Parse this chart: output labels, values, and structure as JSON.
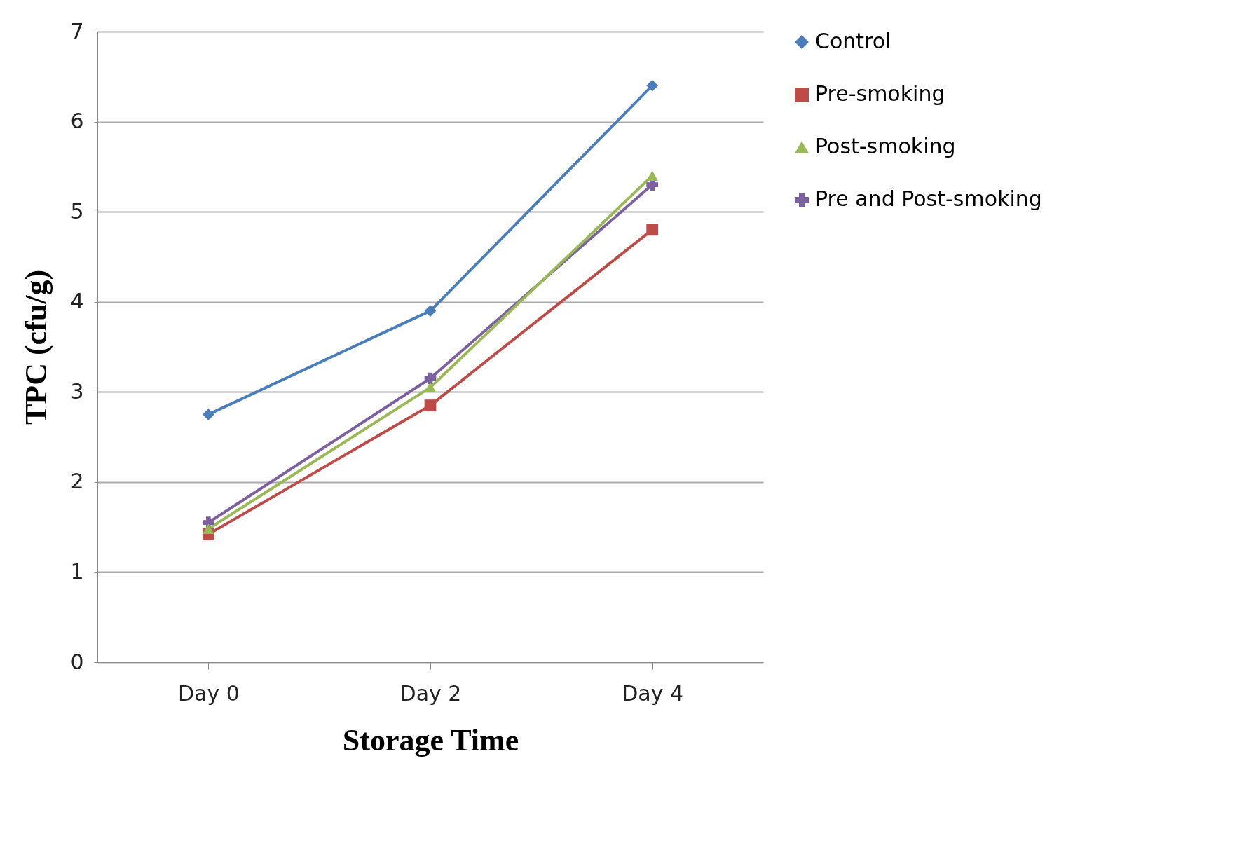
{
  "chart_data": {
    "type": "line",
    "xlabel": "Storage Time",
    "ylabel": "TPC (cfu/g)",
    "categories": [
      "Day 0",
      "Day 2",
      "Day 4"
    ],
    "ylim": [
      0,
      7
    ],
    "yticks": [
      0,
      1,
      2,
      3,
      4,
      5,
      6,
      7
    ],
    "grid": "y",
    "legend": "right",
    "line_style": "solid",
    "series": [
      {
        "name": "Control",
        "color": "#4a7ebb",
        "marker": "diamond",
        "values": [
          2.75,
          3.9,
          6.4
        ]
      },
      {
        "name": "Pre-smoking",
        "color": "#be4b48",
        "marker": "square",
        "values": [
          1.42,
          2.85,
          4.8
        ]
      },
      {
        "name": "Post-smoking",
        "color": "#98b954",
        "marker": "triangle",
        "values": [
          1.48,
          3.05,
          5.4
        ]
      },
      {
        "name": "Pre and Post-smoking",
        "color": "#7d60a0",
        "marker": "cross",
        "values": [
          1.55,
          3.15,
          5.3
        ]
      }
    ]
  }
}
